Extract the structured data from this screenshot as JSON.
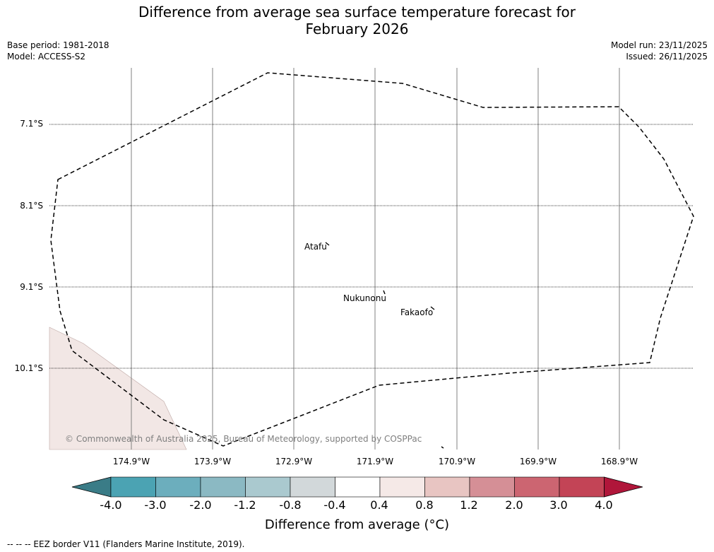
{
  "title": {
    "line1": "Difference from average sea surface temperature forecast for",
    "line2": "February 2026"
  },
  "meta": {
    "base_period": "Base period: 1981-2018",
    "model": "Model: ACCESS-S2",
    "model_run": "Model run: 23/11/2025",
    "issued": "Issued: 26/11/2025"
  },
  "map": {
    "latitude_labels": [
      "7.1°S",
      "8.1°S",
      "9.1°S",
      "10.1°S"
    ],
    "longitude_labels": [
      "174.9°W",
      "173.9°W",
      "172.9°W",
      "171.9°W",
      "170.9°W",
      "169.9°W",
      "168.9°W"
    ],
    "islands": [
      {
        "name": "Atafu"
      },
      {
        "name": "Nukunonu"
      },
      {
        "name": "Fakaofo"
      }
    ],
    "fill_color": "#f2e7e5",
    "border_style": "dashed",
    "copyright": "© Commonwealth of Australia 2025, Bureau of Meteorology, supported by COSPPac"
  },
  "colorbar": {
    "title": "Difference from average (°C)",
    "tick_labels": [
      "-4.0",
      "-3.0",
      "-2.0",
      "-1.2",
      "-0.8",
      "-0.4",
      "0.4",
      "0.8",
      "1.2",
      "2.0",
      "3.0",
      "4.0"
    ],
    "segment_colors": [
      "#3a7c87",
      "#4ba3b3",
      "#6caebd",
      "#8bb9c3",
      "#aac9cf",
      "#d2d8da",
      "#ffffff",
      "#f5e9e7",
      "#e8c5c2",
      "#d58f96",
      "#cc6571",
      "#c34456",
      "#b0163a"
    ]
  },
  "footnote": "--  --  -- EEZ border V11 (Flanders Marine Institute, 2019)."
}
